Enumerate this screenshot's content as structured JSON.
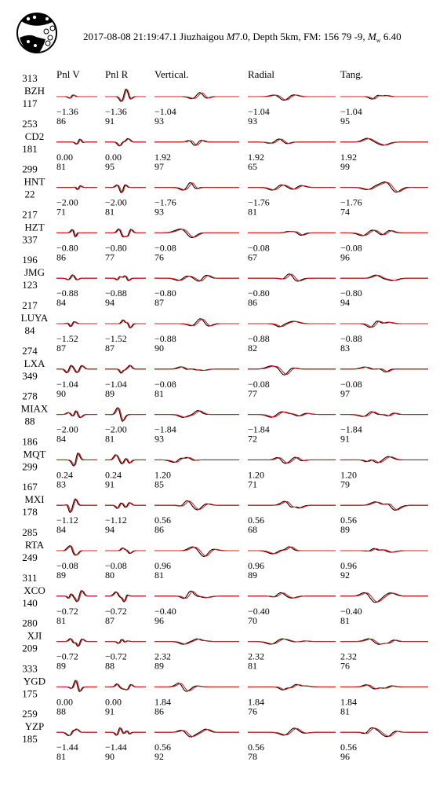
{
  "header": {
    "datetime": "2017-08-08 21:19:47.1",
    "event": "Jiuzhaigou",
    "magnitude_label": "M",
    "magnitude_value": "7.0,",
    "depth": "Depth 5km,",
    "focal_mechanism": "FM: 156 79 -9,",
    "moment_label": "M",
    "moment_sub": "w",
    "moment_value": "6.40"
  },
  "columns": [
    "Pnl V",
    "Pnl R",
    "Vertical.",
    "Radial",
    "Tang."
  ],
  "colors": {
    "observed": "#000000",
    "synthetic": "#d42020"
  },
  "stations": [
    {
      "name": "BZH",
      "azimuth": "313",
      "distance": "117",
      "shifts": [
        "−1.36",
        "−1.36",
        "−1.04",
        "−1.04",
        "−1.04"
      ],
      "cc": [
        "86",
        "91",
        "93",
        "93",
        "95"
      ]
    },
    {
      "name": "CD2",
      "azimuth": "253",
      "distance": "181",
      "shifts": [
        "0.00",
        "0.00",
        "1.92",
        "1.92",
        "1.92"
      ],
      "cc": [
        "81",
        "95",
        "97",
        "65",
        "99"
      ]
    },
    {
      "name": "HNT",
      "azimuth": "299",
      "distance": "22",
      "shifts": [
        "−2.00",
        "−2.00",
        "−1.76",
        "−1.76",
        "−1.76"
      ],
      "cc": [
        "71",
        "81",
        "93",
        "81",
        "74"
      ]
    },
    {
      "name": "HZT",
      "azimuth": "217",
      "distance": "337",
      "shifts": [
        "−0.80",
        "−0.80",
        "−0.08",
        "−0.08",
        "−0.08"
      ],
      "cc": [
        "86",
        "77",
        "76",
        "67",
        "96"
      ]
    },
    {
      "name": "JMG",
      "azimuth": "196",
      "distance": "123",
      "shifts": [
        "−0.88",
        "−0.88",
        "−0.80",
        "−0.80",
        "−0.80"
      ],
      "cc": [
        "84",
        "94",
        "87",
        "86",
        "94"
      ]
    },
    {
      "name": "LUYA",
      "azimuth": "217",
      "distance": "84",
      "shifts": [
        "−1.52",
        "−1.52",
        "−0.88",
        "−0.88",
        "−0.88"
      ],
      "cc": [
        "87",
        "87",
        "90",
        "82",
        "83"
      ]
    },
    {
      "name": "LXA",
      "azimuth": "274",
      "distance": "349",
      "shifts": [
        "−1.04",
        "−1.04",
        "−0.08",
        "−0.08",
        "−0.08"
      ],
      "cc": [
        "90",
        "89",
        "81",
        "77",
        "97"
      ]
    },
    {
      "name": "MIAX",
      "azimuth": "278",
      "distance": "88",
      "shifts": [
        "−2.00",
        "−2.00",
        "−1.84",
        "−1.84",
        "−1.84"
      ],
      "cc": [
        "84",
        "81",
        "93",
        "72",
        "91"
      ]
    },
    {
      "name": "MQT",
      "azimuth": "186",
      "distance": "299",
      "shifts": [
        "0.24",
        "0.24",
        "1.20",
        "1.20",
        "1.20"
      ],
      "cc": [
        "83",
        "91",
        "85",
        "71",
        "79"
      ]
    },
    {
      "name": "MXI",
      "azimuth": "167",
      "distance": "178",
      "shifts": [
        "−1.12",
        "−1.12",
        "0.56",
        "0.56",
        "0.56"
      ],
      "cc": [
        "84",
        "94",
        "86",
        "68",
        "89"
      ]
    },
    {
      "name": "RTA",
      "azimuth": "285",
      "distance": "249",
      "shifts": [
        "−0.08",
        "−0.08",
        "0.96",
        "0.96",
        "0.96"
      ],
      "cc": [
        "89",
        "80",
        "81",
        "89",
        "92"
      ]
    },
    {
      "name": "XCO",
      "azimuth": "311",
      "distance": "140",
      "shifts": [
        "−0.72",
        "−0.72",
        "−0.40",
        "−0.40",
        "−0.40"
      ],
      "cc": [
        "81",
        "87",
        "96",
        "70",
        "81"
      ]
    },
    {
      "name": "XJI",
      "azimuth": "280",
      "distance": "209",
      "shifts": [
        "−0.72",
        "−0.72",
        "2.32",
        "2.32",
        "2.32"
      ],
      "cc": [
        "89",
        "88",
        "89",
        "81",
        "76"
      ]
    },
    {
      "name": "YGD",
      "azimuth": "333",
      "distance": "175",
      "shifts": [
        "0.00",
        "0.00",
        "1.84",
        "1.84",
        "1.84"
      ],
      "cc": [
        "88",
        "91",
        "86",
        "76",
        "81"
      ]
    },
    {
      "name": "YZP",
      "azimuth": "259",
      "distance": "185",
      "shifts": [
        "−1.44",
        "−1.44",
        "0.56",
        "0.56",
        "0.56"
      ],
      "cc": [
        "81",
        "90",
        "92",
        "78",
        "96"
      ]
    }
  ]
}
